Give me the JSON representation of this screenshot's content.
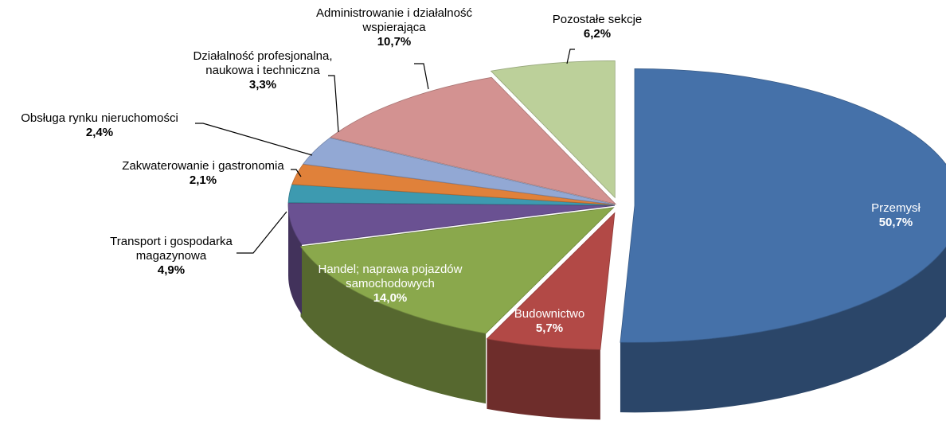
{
  "chart_data": {
    "type": "pie",
    "categories": [
      "Przemysł",
      "Budownictwo",
      "Handel; naprawa pojazdów samochodowych",
      "Transport i gospodarka magazynowa",
      "Zakwaterowanie i gastronomia",
      "Obsługa rynku nieruchomości",
      "Działalność profesjonalna, naukowa i techniczna",
      "Administrowanie i działalność wspierająca",
      "Pozostałe sekcje"
    ],
    "values": [
      50.7,
      5.7,
      14.0,
      4.9,
      2.1,
      2.4,
      3.3,
      10.7,
      6.2
    ],
    "value_labels": [
      "50,7%",
      "5,7%",
      "14,0%",
      "4,9%",
      "2,1%",
      "2,4%",
      "3,3%",
      "10,7%",
      "6,2%"
    ],
    "colors": [
      "#4571a9",
      "#b24946",
      "#8aa84c",
      "#6a5192",
      "#3d9ab0",
      "#e0813a",
      "#92a8d4",
      "#d39291",
      "#bcd09a"
    ]
  }
}
